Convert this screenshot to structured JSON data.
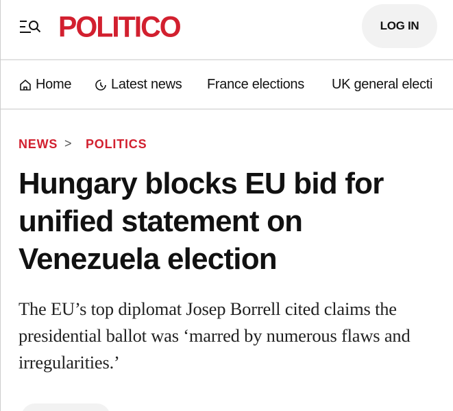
{
  "header": {
    "logo": "POLITICO",
    "login_label": "LOG IN",
    "brand_color": "#d2202f"
  },
  "nav": {
    "items": [
      {
        "label": "Home",
        "icon": "home-icon"
      },
      {
        "label": "Latest news",
        "icon": "clock-icon"
      },
      {
        "label": "France elections"
      },
      {
        "label": "UK general electi"
      }
    ]
  },
  "breadcrumb": {
    "section": "NEWS",
    "separator": ">",
    "subsection": "POLITICS"
  },
  "article": {
    "headline": "Hungary blocks EU bid for unified statement on Venezuela election",
    "dek": "The EU’s top diplomat Josep Borrell cited claims the presidential ballot was ‘marred by numerous flaws and irregularities.’"
  }
}
